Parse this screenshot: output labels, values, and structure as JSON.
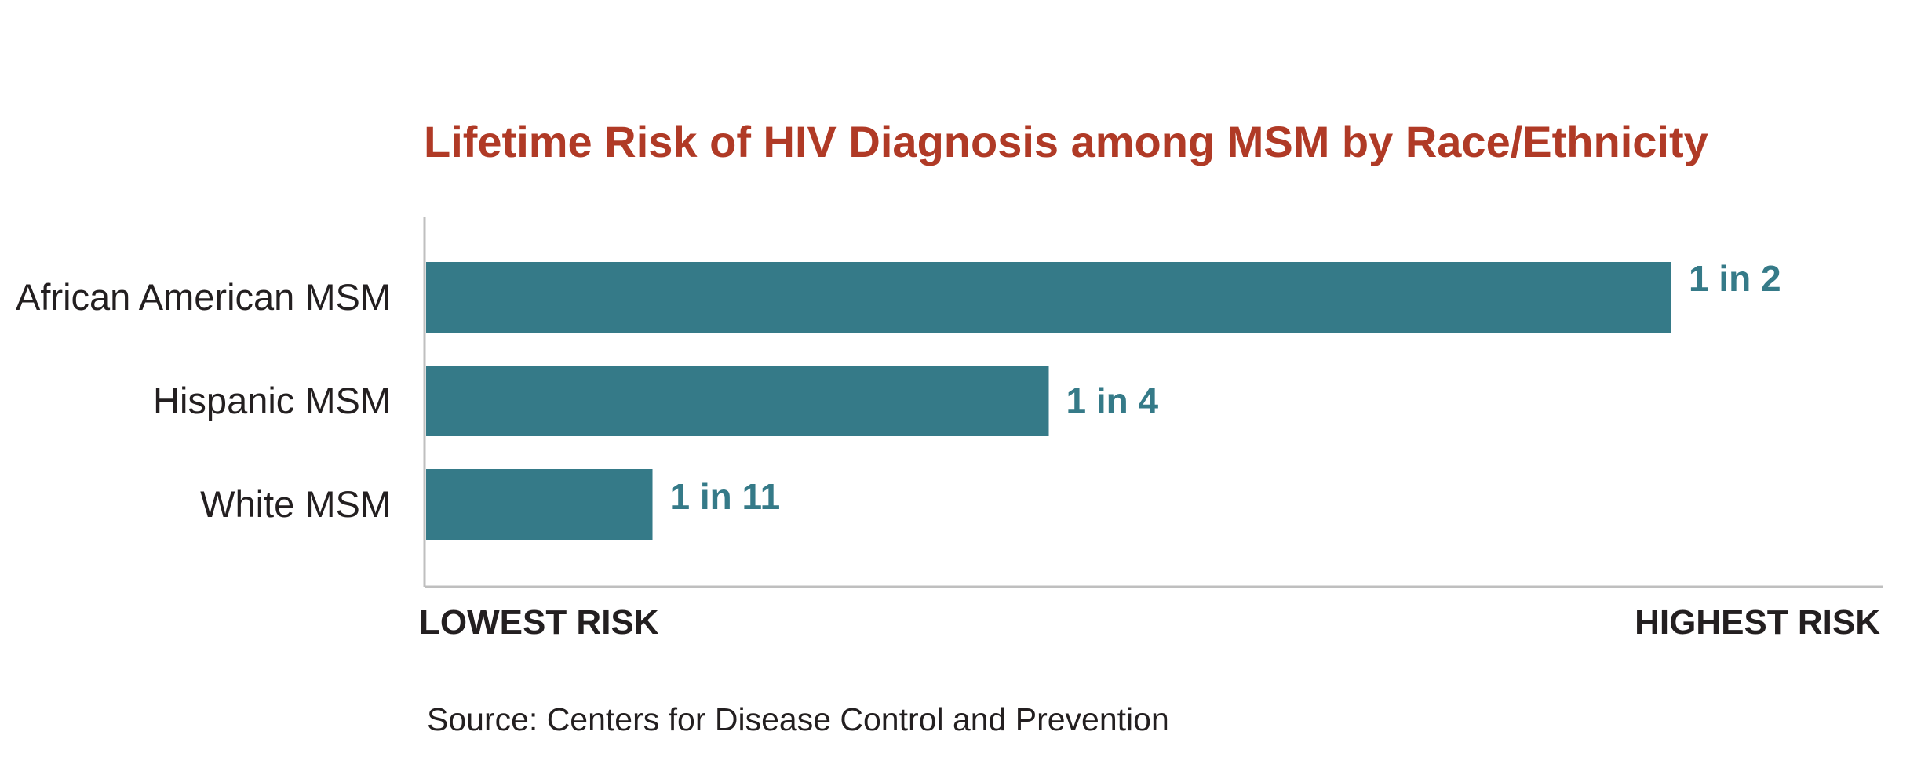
{
  "colors": {
    "title": "#b03a26",
    "bar": "#357a88",
    "value_text": "#357a88",
    "axis": "#bfbfbf",
    "text": "#231f20"
  },
  "chart_data": {
    "type": "bar",
    "orientation": "horizontal",
    "title": "Lifetime Risk of HIV Diagnosis among MSM by Race/Ethnicity",
    "categories": [
      "African American MSM",
      "Hispanic MSM",
      "White MSM"
    ],
    "values": [
      0.5,
      0.25,
      0.0909
    ],
    "value_labels": [
      "1 in 2",
      "1 in 4",
      "1 in 11"
    ],
    "x_axis": {
      "low_label": "LOWEST RISK",
      "high_label": "HIGHEST RISK"
    },
    "xlim": [
      0,
      0.5
    ],
    "grid": false,
    "legend": "none"
  },
  "source": "Source: Centers for Disease Control and Prevention"
}
